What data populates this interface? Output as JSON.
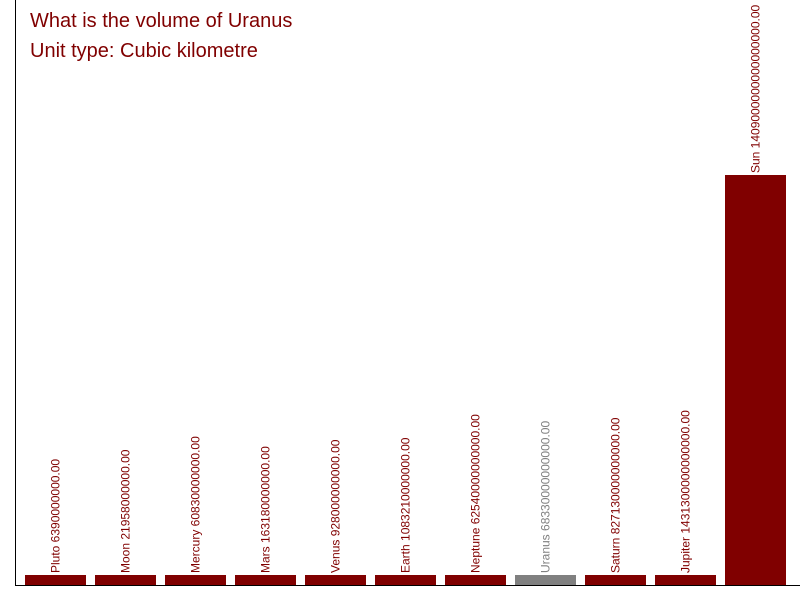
{
  "chart_data": {
    "type": "bar",
    "title": "What is the volume of Uranus",
    "subtitle": "Unit type: Cubic kilometre",
    "xlabel": "",
    "ylabel": "",
    "ylim": [
      0,
      1409000000000000000
    ],
    "grid": false,
    "legend": "none",
    "categories": [
      "Pluto",
      "Moon",
      "Mercury",
      "Mars",
      "Venus",
      "Earth",
      "Neptune",
      "Uranus",
      "Saturn",
      "Jupiter",
      "Sun"
    ],
    "values": [
      6390000000,
      21958000000,
      60830000000,
      163180000000,
      928000000000,
      1083210000000,
      62540000000000,
      68330000000000,
      827130000000000,
      1431300000000000,
      1409000000000000000
    ],
    "labels": [
      "Pluto 6390000000.00",
      "Moon 21958000000.00",
      "Mercury 60830000000.00",
      "Mars 163180000000.00",
      "Venus 928000000000.00",
      "Earth 1083210000000.00",
      "Neptune 62540000000000.00",
      "Uranus 68330000000000.00",
      "Saturn 827130000000000.00",
      "Jupiter 1431300000000000.00",
      "Sun 1409000000000000000.00"
    ],
    "highlight": "Uranus",
    "colors": {
      "bar": "#800000",
      "highlight": "#808080",
      "axis": "#000000",
      "text": "#800000"
    }
  }
}
